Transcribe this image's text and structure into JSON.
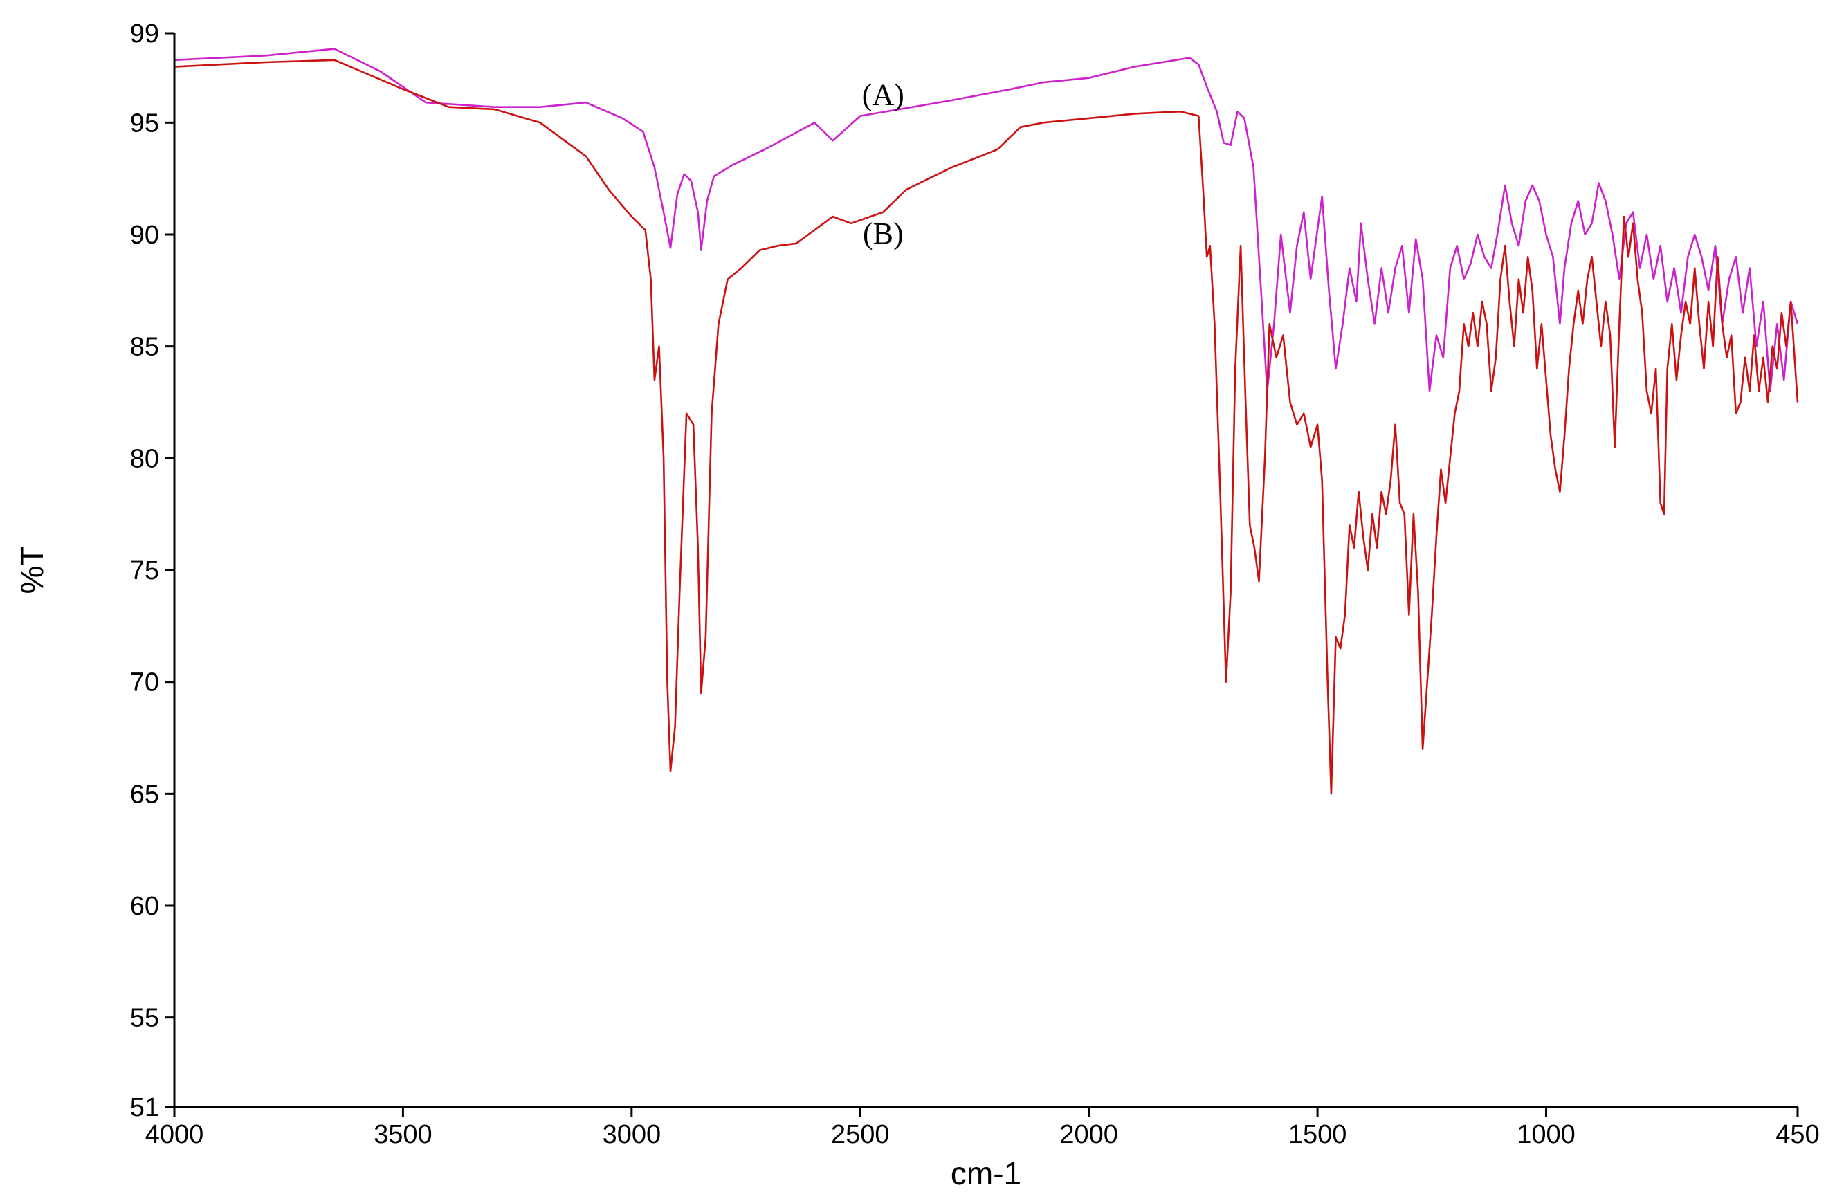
{
  "chart_data": {
    "type": "line",
    "xlabel": "cm-1",
    "ylabel": "%T",
    "xlim": [
      4000,
      450
    ],
    "ylim": [
      51,
      99
    ],
    "x_reversed": true,
    "grid": false,
    "legend": "none",
    "x_ticks": [
      4000,
      3500,
      3000,
      2500,
      2000,
      1500,
      1000,
      450
    ],
    "y_ticks": [
      99,
      95,
      90,
      85,
      80,
      75,
      70,
      65,
      60,
      55,
      51
    ],
    "series": [
      {
        "name": "(A)",
        "label_at": [
          2450,
          95.8
        ],
        "color": "#cc22cc",
        "points": [
          [
            4000,
            97.8
          ],
          [
            3800,
            98.0
          ],
          [
            3650,
            98.3
          ],
          [
            3550,
            97.3
          ],
          [
            3450,
            95.9
          ],
          [
            3300,
            95.7
          ],
          [
            3200,
            95.7
          ],
          [
            3100,
            95.9
          ],
          [
            3020,
            95.2
          ],
          [
            2975,
            94.6
          ],
          [
            2950,
            93.0
          ],
          [
            2930,
            91.0
          ],
          [
            2915,
            89.4
          ],
          [
            2900,
            91.8
          ],
          [
            2885,
            92.7
          ],
          [
            2870,
            92.4
          ],
          [
            2855,
            91.0
          ],
          [
            2848,
            89.3
          ],
          [
            2835,
            91.5
          ],
          [
            2820,
            92.6
          ],
          [
            2780,
            93.1
          ],
          [
            2700,
            93.9
          ],
          [
            2600,
            95.0
          ],
          [
            2560,
            94.2
          ],
          [
            2500,
            95.3
          ],
          [
            2300,
            96.0
          ],
          [
            2170,
            96.5
          ],
          [
            2100,
            96.8
          ],
          [
            2000,
            97.0
          ],
          [
            1900,
            97.5
          ],
          [
            1780,
            97.9
          ],
          [
            1760,
            97.6
          ],
          [
            1740,
            96.5
          ],
          [
            1720,
            95.5
          ],
          [
            1705,
            94.1
          ],
          [
            1690,
            94.0
          ],
          [
            1675,
            95.5
          ],
          [
            1660,
            95.2
          ],
          [
            1640,
            93.0
          ],
          [
            1625,
            88.0
          ],
          [
            1610,
            83.0
          ],
          [
            1595,
            86.0
          ],
          [
            1580,
            90.0
          ],
          [
            1560,
            86.5
          ],
          [
            1545,
            89.5
          ],
          [
            1530,
            91.0
          ],
          [
            1515,
            88.0
          ],
          [
            1505,
            89.5
          ],
          [
            1490,
            91.7
          ],
          [
            1475,
            87.5
          ],
          [
            1460,
            84.0
          ],
          [
            1445,
            86.0
          ],
          [
            1430,
            88.5
          ],
          [
            1415,
            87.0
          ],
          [
            1405,
            90.5
          ],
          [
            1390,
            88.0
          ],
          [
            1375,
            86.0
          ],
          [
            1360,
            88.5
          ],
          [
            1345,
            86.5
          ],
          [
            1330,
            88.5
          ],
          [
            1315,
            89.5
          ],
          [
            1300,
            86.5
          ],
          [
            1285,
            89.8
          ],
          [
            1270,
            88.0
          ],
          [
            1255,
            83.0
          ],
          [
            1240,
            85.5
          ],
          [
            1225,
            84.5
          ],
          [
            1210,
            88.5
          ],
          [
            1195,
            89.5
          ],
          [
            1180,
            88.0
          ],
          [
            1165,
            88.7
          ],
          [
            1150,
            90.0
          ],
          [
            1135,
            89.0
          ],
          [
            1120,
            88.5
          ],
          [
            1105,
            90.2
          ],
          [
            1090,
            92.2
          ],
          [
            1075,
            90.5
          ],
          [
            1060,
            89.5
          ],
          [
            1045,
            91.5
          ],
          [
            1030,
            92.2
          ],
          [
            1015,
            91.5
          ],
          [
            1000,
            90.0
          ],
          [
            985,
            89.0
          ],
          [
            970,
            86.0
          ],
          [
            960,
            88.5
          ],
          [
            945,
            90.5
          ],
          [
            930,
            91.5
          ],
          [
            915,
            90.0
          ],
          [
            900,
            90.5
          ],
          [
            885,
            92.3
          ],
          [
            870,
            91.5
          ],
          [
            855,
            90.0
          ],
          [
            840,
            88.0
          ],
          [
            825,
            90.5
          ],
          [
            810,
            91.0
          ],
          [
            795,
            88.5
          ],
          [
            780,
            90.0
          ],
          [
            765,
            88.0
          ],
          [
            750,
            89.5
          ],
          [
            735,
            87.0
          ],
          [
            720,
            88.5
          ],
          [
            705,
            86.5
          ],
          [
            690,
            89.0
          ],
          [
            675,
            90.0
          ],
          [
            660,
            89.0
          ],
          [
            645,
            87.5
          ],
          [
            630,
            89.5
          ],
          [
            615,
            86.0
          ],
          [
            600,
            88.0
          ],
          [
            585,
            89.0
          ],
          [
            570,
            86.5
          ],
          [
            555,
            88.5
          ],
          [
            540,
            85.0
          ],
          [
            525,
            87.0
          ],
          [
            510,
            83.0
          ],
          [
            495,
            86.0
          ],
          [
            480,
            83.5
          ],
          [
            465,
            87.0
          ],
          [
            450,
            86.0
          ]
        ]
      },
      {
        "name": "(B)",
        "label_at": [
          2450,
          89.6
        ],
        "color": "#cc1111",
        "points": [
          [
            4000,
            97.5
          ],
          [
            3800,
            97.7
          ],
          [
            3650,
            97.8
          ],
          [
            3500,
            96.5
          ],
          [
            3400,
            95.7
          ],
          [
            3300,
            95.6
          ],
          [
            3200,
            95.0
          ],
          [
            3100,
            93.5
          ],
          [
            3050,
            92.0
          ],
          [
            3000,
            90.8
          ],
          [
            2970,
            90.2
          ],
          [
            2958,
            88.0
          ],
          [
            2950,
            83.5
          ],
          [
            2940,
            85.0
          ],
          [
            2930,
            80.0
          ],
          [
            2922,
            70.0
          ],
          [
            2915,
            66.0
          ],
          [
            2905,
            68.0
          ],
          [
            2895,
            74.0
          ],
          [
            2880,
            82.0
          ],
          [
            2865,
            81.5
          ],
          [
            2855,
            76.0
          ],
          [
            2848,
            69.5
          ],
          [
            2838,
            72.0
          ],
          [
            2825,
            82.0
          ],
          [
            2810,
            86.0
          ],
          [
            2790,
            88.0
          ],
          [
            2760,
            88.5
          ],
          [
            2720,
            89.3
          ],
          [
            2680,
            89.5
          ],
          [
            2640,
            89.6
          ],
          [
            2600,
            90.2
          ],
          [
            2560,
            90.8
          ],
          [
            2520,
            90.5
          ],
          [
            2450,
            91.0
          ],
          [
            2400,
            92.0
          ],
          [
            2300,
            93.0
          ],
          [
            2200,
            93.8
          ],
          [
            2150,
            94.8
          ],
          [
            2100,
            95.0
          ],
          [
            2000,
            95.2
          ],
          [
            1900,
            95.4
          ],
          [
            1800,
            95.5
          ],
          [
            1760,
            95.3
          ],
          [
            1750,
            92.0
          ],
          [
            1742,
            89.0
          ],
          [
            1735,
            89.5
          ],
          [
            1725,
            86.0
          ],
          [
            1712,
            78.0
          ],
          [
            1700,
            70.0
          ],
          [
            1690,
            74.0
          ],
          [
            1680,
            84.0
          ],
          [
            1668,
            89.5
          ],
          [
            1658,
            83.0
          ],
          [
            1648,
            77.0
          ],
          [
            1638,
            76.0
          ],
          [
            1628,
            74.5
          ],
          [
            1615,
            80.0
          ],
          [
            1605,
            86.0
          ],
          [
            1590,
            84.5
          ],
          [
            1575,
            85.5
          ],
          [
            1560,
            82.5
          ],
          [
            1545,
            81.5
          ],
          [
            1530,
            82.0
          ],
          [
            1515,
            80.5
          ],
          [
            1500,
            81.5
          ],
          [
            1490,
            79.0
          ],
          [
            1478,
            70.0
          ],
          [
            1470,
            65.0
          ],
          [
            1460,
            72.0
          ],
          [
            1450,
            71.5
          ],
          [
            1440,
            73.0
          ],
          [
            1430,
            77.0
          ],
          [
            1420,
            76.0
          ],
          [
            1410,
            78.5
          ],
          [
            1400,
            76.5
          ],
          [
            1390,
            75.0
          ],
          [
            1380,
            77.5
          ],
          [
            1370,
            76.0
          ],
          [
            1360,
            78.5
          ],
          [
            1350,
            77.5
          ],
          [
            1340,
            79.0
          ],
          [
            1330,
            81.5
          ],
          [
            1320,
            78.0
          ],
          [
            1310,
            77.5
          ],
          [
            1300,
            73.0
          ],
          [
            1290,
            77.5
          ],
          [
            1280,
            74.0
          ],
          [
            1270,
            67.0
          ],
          [
            1260,
            70.0
          ],
          [
            1250,
            73.0
          ],
          [
            1240,
            76.5
          ],
          [
            1230,
            79.5
          ],
          [
            1220,
            78.0
          ],
          [
            1210,
            80.0
          ],
          [
            1200,
            82.0
          ],
          [
            1190,
            83.0
          ],
          [
            1180,
            86.0
          ],
          [
            1170,
            85.0
          ],
          [
            1160,
            86.5
          ],
          [
            1150,
            85.0
          ],
          [
            1140,
            87.0
          ],
          [
            1130,
            86.0
          ],
          [
            1120,
            83.0
          ],
          [
            1110,
            84.5
          ],
          [
            1100,
            88.0
          ],
          [
            1090,
            89.5
          ],
          [
            1080,
            87.0
          ],
          [
            1070,
            85.0
          ],
          [
            1060,
            88.0
          ],
          [
            1050,
            86.5
          ],
          [
            1040,
            89.0
          ],
          [
            1030,
            87.5
          ],
          [
            1020,
            84.0
          ],
          [
            1010,
            86.0
          ],
          [
            1000,
            83.5
          ],
          [
            990,
            81.0
          ],
          [
            980,
            79.5
          ],
          [
            970,
            78.5
          ],
          [
            960,
            81.0
          ],
          [
            950,
            84.0
          ],
          [
            940,
            86.0
          ],
          [
            930,
            87.5
          ],
          [
            920,
            86.0
          ],
          [
            910,
            88.0
          ],
          [
            900,
            89.0
          ],
          [
            890,
            87.0
          ],
          [
            880,
            85.0
          ],
          [
            870,
            87.0
          ],
          [
            860,
            85.5
          ],
          [
            850,
            80.5
          ],
          [
            840,
            86.0
          ],
          [
            830,
            90.8
          ],
          [
            820,
            89.0
          ],
          [
            810,
            90.5
          ],
          [
            800,
            88.0
          ],
          [
            790,
            86.5
          ],
          [
            780,
            83.0
          ],
          [
            770,
            82.0
          ],
          [
            760,
            84.0
          ],
          [
            750,
            78.0
          ],
          [
            742,
            77.5
          ],
          [
            735,
            84.0
          ],
          [
            725,
            86.0
          ],
          [
            715,
            83.5
          ],
          [
            705,
            85.5
          ],
          [
            695,
            87.0
          ],
          [
            685,
            86.0
          ],
          [
            675,
            88.5
          ],
          [
            665,
            86.0
          ],
          [
            655,
            84.0
          ],
          [
            645,
            87.0
          ],
          [
            635,
            85.0
          ],
          [
            625,
            89.0
          ],
          [
            615,
            86.0
          ],
          [
            605,
            84.5
          ],
          [
            595,
            85.5
          ],
          [
            585,
            82.0
          ],
          [
            575,
            82.5
          ],
          [
            565,
            84.5
          ],
          [
            555,
            83.0
          ],
          [
            545,
            85.5
          ],
          [
            535,
            83.0
          ],
          [
            525,
            84.5
          ],
          [
            515,
            82.5
          ],
          [
            505,
            85.0
          ],
          [
            495,
            84.0
          ],
          [
            485,
            86.5
          ],
          [
            475,
            85.0
          ],
          [
            465,
            87.0
          ],
          [
            455,
            84.0
          ],
          [
            450,
            82.5
          ]
        ]
      }
    ]
  }
}
